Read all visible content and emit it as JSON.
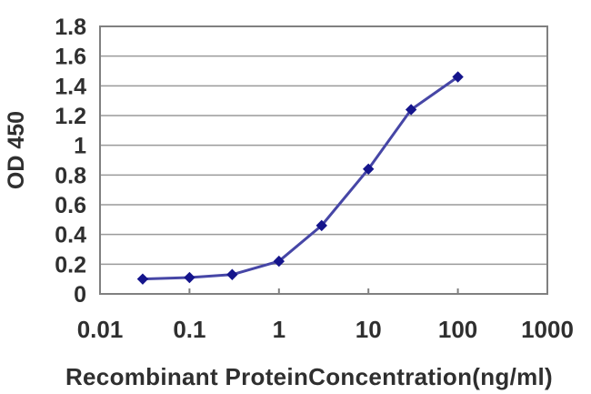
{
  "chart_data": {
    "type": "line",
    "title": "",
    "xlabel": "Recombinant ProteinConcentration(ng/ml)",
    "ylabel": "OD 450",
    "x_scale": "log",
    "xlim": [
      0.01,
      1000
    ],
    "ylim": [
      0,
      1.8
    ],
    "x_ticks": [
      0.01,
      0.1,
      1,
      10,
      100,
      1000
    ],
    "x_tick_labels": [
      "0.01",
      "0.1",
      "1",
      "10",
      "100",
      "1000"
    ],
    "y_ticks": [
      0,
      0.2,
      0.4,
      0.6,
      0.8,
      1,
      1.2,
      1.4,
      1.6,
      1.8
    ],
    "y_tick_labels": [
      "0",
      "0.2",
      "0.4",
      "0.6",
      "0.8",
      "1",
      "1.2",
      "1.4",
      "1.6",
      "1.8"
    ],
    "grid": true,
    "legend": "none",
    "series": [
      {
        "name": "OD 450",
        "x": [
          0.03,
          0.1,
          0.3,
          1,
          3,
          10,
          30,
          100
        ],
        "y": [
          0.1,
          0.11,
          0.13,
          0.22,
          0.46,
          0.84,
          1.24,
          1.46
        ]
      }
    ],
    "colors": {
      "line": "#4646a6",
      "marker": "#15158c",
      "grid": "#9a9a9a",
      "border": "#808080",
      "text": "#2f2f2f",
      "background": "#ffffff"
    }
  }
}
